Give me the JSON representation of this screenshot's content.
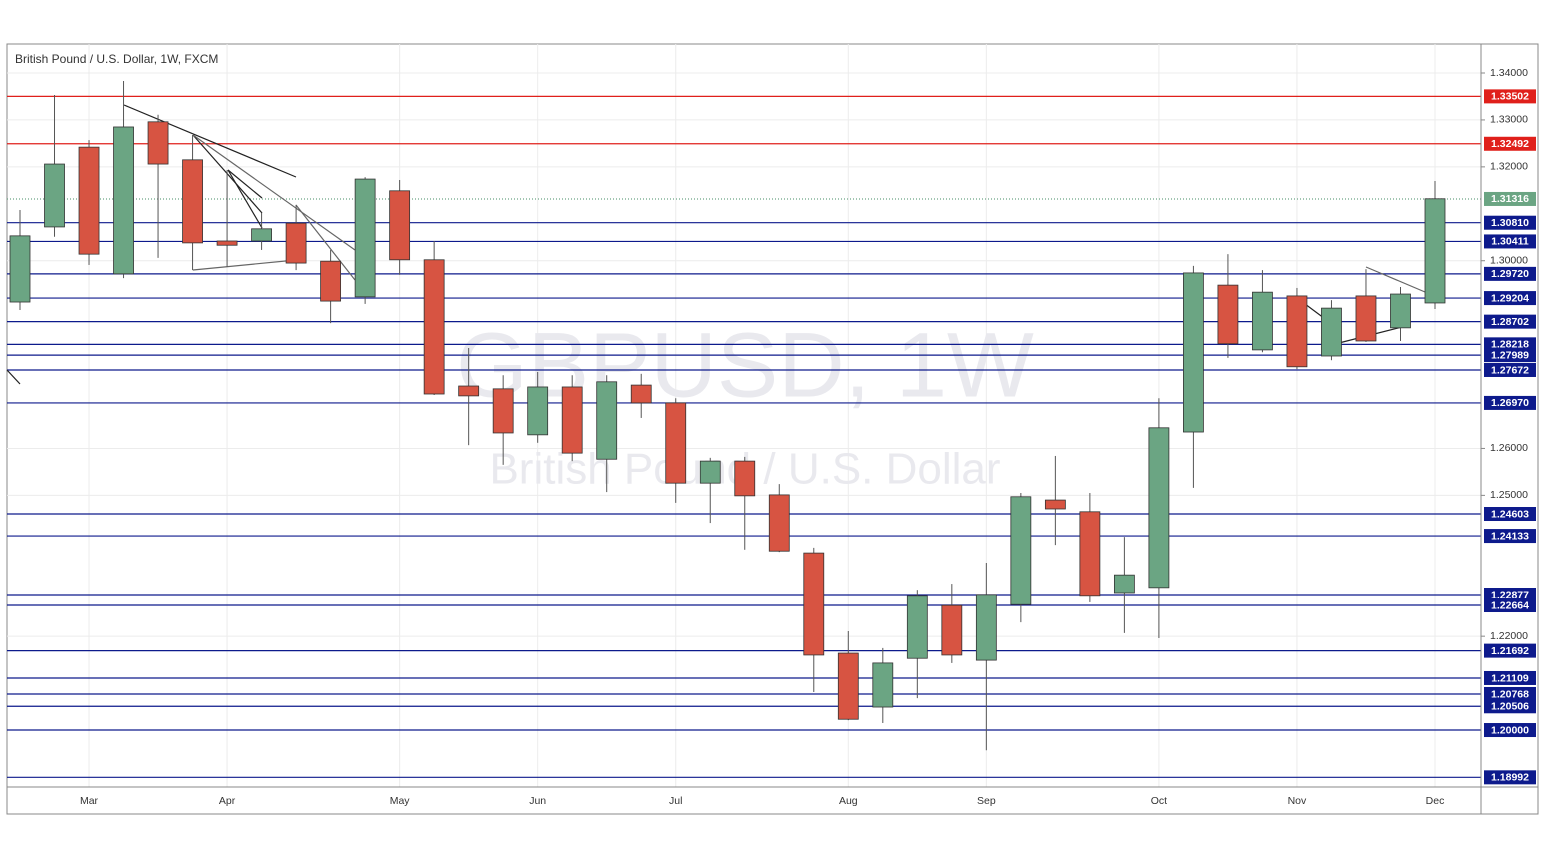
{
  "chart_data": {
    "type": "candlestick",
    "title": "British Pound / U.S. Dollar, 1W, FXCM",
    "watermark": "GBPUSD, 1W",
    "watermark_subtitle": "British Pound / U.S. Dollar",
    "categories": [
      null,
      null,
      "Mar",
      null,
      null,
      null,
      "Apr",
      null,
      null,
      null,
      null,
      "May",
      null,
      null,
      null,
      "Jun",
      null,
      null,
      null,
      "Jul",
      null,
      null,
      null,
      null,
      "Aug",
      null,
      null,
      null,
      "Sep",
      null,
      null,
      null,
      null,
      "Oct",
      null,
      null,
      null,
      "Nov",
      null,
      null,
      null,
      "Dec"
    ],
    "open": [
      1.2912,
      1.3072,
      1.3242,
      1.2972,
      1.3296,
      1.3215,
      1.3042,
      1.3042,
      1.308,
      1.2999,
      1.2923,
      1.3149,
      1.3002,
      1.2733,
      1.2727,
      1.2629,
      1.2731,
      1.2577,
      1.2735,
      1.2697,
      1.2526,
      1.2573,
      1.2501,
      1.2377,
      1.2164,
      1.2049,
      1.2153,
      1.2266,
      1.2149,
      1.2268,
      1.249,
      1.2465,
      1.2292,
      1.2303,
      1.2635,
      1.2948,
      1.281,
      1.2925,
      1.2797,
      1.2925,
      1.2857,
      1.291
    ],
    "high": [
      1.3108,
      1.3353,
      1.3257,
      1.3383,
      1.3311,
      1.3268,
      1.3193,
      1.3102,
      1.3119,
      1.3023,
      1.3178,
      1.3172,
      1.3042,
      1.2814,
      1.2756,
      1.2763,
      1.2756,
      1.2756,
      1.2759,
      1.2707,
      1.258,
      1.2582,
      1.2524,
      1.2388,
      1.2211,
      1.2175,
      1.2298,
      1.2311,
      1.2356,
      1.2505,
      1.2584,
      1.2505,
      1.2411,
      1.2707,
      1.2989,
      1.3014,
      1.298,
      1.2942,
      1.2916,
      1.2982,
      1.2944,
      1.317
    ],
    "low": [
      1.2895,
      1.3051,
      1.2991,
      1.2963,
      1.3006,
      1.298,
      1.2987,
      1.3023,
      1.298,
      1.2867,
      1.2908,
      1.297,
      1.2714,
      1.2607,
      1.2565,
      1.2612,
      1.2573,
      1.2507,
      1.2665,
      1.2484,
      1.2441,
      1.2384,
      1.2379,
      1.2081,
      1.2021,
      1.2015,
      1.2068,
      1.2143,
      1.1957,
      1.223,
      1.2394,
      1.2273,
      1.2207,
      1.2196,
      1.2516,
      1.2793,
      1.2805,
      1.2769,
      1.2788,
      1.2827,
      1.2829,
      1.2897
    ],
    "close": [
      1.3053,
      1.3206,
      1.3014,
      1.3285,
      1.3206,
      1.3038,
      1.3033,
      1.3068,
      1.2995,
      1.2914,
      1.3174,
      1.3002,
      1.2716,
      1.2712,
      1.2633,
      1.2731,
      1.259,
      1.2742,
      1.2697,
      1.2526,
      1.2573,
      1.2499,
      1.2381,
      1.216,
      1.2023,
      1.2143,
      1.2286,
      1.216,
      1.2288,
      1.2497,
      1.2471,
      1.2286,
      1.233,
      1.2644,
      1.2974,
      1.2823,
      1.2933,
      1.2774,
      1.2899,
      1.2829,
      1.2929,
      1.3132
    ],
    "up_color": "#6ba583",
    "down_color": "#d75442",
    "ylim": [
      1.18786,
      1.34618
    ],
    "yticks": [
      {
        "value": 1.34,
        "label": "1.34000"
      },
      {
        "value": 1.33,
        "label": "1.33000"
      },
      {
        "value": 1.32,
        "label": "1.32000"
      },
      {
        "value": 1.3,
        "label": "1.30000"
      },
      {
        "value": 1.26,
        "label": "1.26000"
      },
      {
        "value": 1.25,
        "label": "1.25000"
      },
      {
        "value": 1.22,
        "label": "1.22000"
      }
    ],
    "grid": true,
    "levels": [
      {
        "value": 1.33502,
        "color": "#e0201b"
      },
      {
        "value": 1.32492,
        "color": "#e0201b"
      },
      {
        "value": 1.31316,
        "color": "#6ba583",
        "style": "dotted"
      },
      {
        "value": 1.3081,
        "label": "1.30810",
        "color": "#0d1a8c"
      },
      {
        "value": 1.30411,
        "color": "#0d1a8c"
      },
      {
        "value": 1.2972,
        "label": "1.29720",
        "color": "#0d1a8c"
      },
      {
        "value": 1.29204,
        "color": "#0d1a8c"
      },
      {
        "value": 1.28702,
        "color": "#0d1a8c"
      },
      {
        "value": 1.28218,
        "color": "#0d1a8c"
      },
      {
        "value": 1.27989,
        "color": "#0d1a8c"
      },
      {
        "value": 1.27672,
        "color": "#0d1a8c"
      },
      {
        "value": 1.2697,
        "label": "1.26970",
        "color": "#0d1a8c"
      },
      {
        "value": 1.24603,
        "color": "#0d1a8c"
      },
      {
        "value": 1.24133,
        "color": "#0d1a8c"
      },
      {
        "value": 1.22877,
        "color": "#0d1a8c"
      },
      {
        "value": 1.22664,
        "color": "#0d1a8c"
      },
      {
        "value": 1.21692,
        "color": "#0d1a8c"
      },
      {
        "value": 1.21109,
        "color": "#0d1a8c"
      },
      {
        "value": 1.20768,
        "color": "#0d1a8c"
      },
      {
        "value": 1.20506,
        "color": "#0d1a8c"
      },
      {
        "value": 1.2,
        "label": "1.20000",
        "color": "#0d1a8c"
      },
      {
        "value": 1.18992,
        "color": "#0d1a8c"
      }
    ]
  }
}
